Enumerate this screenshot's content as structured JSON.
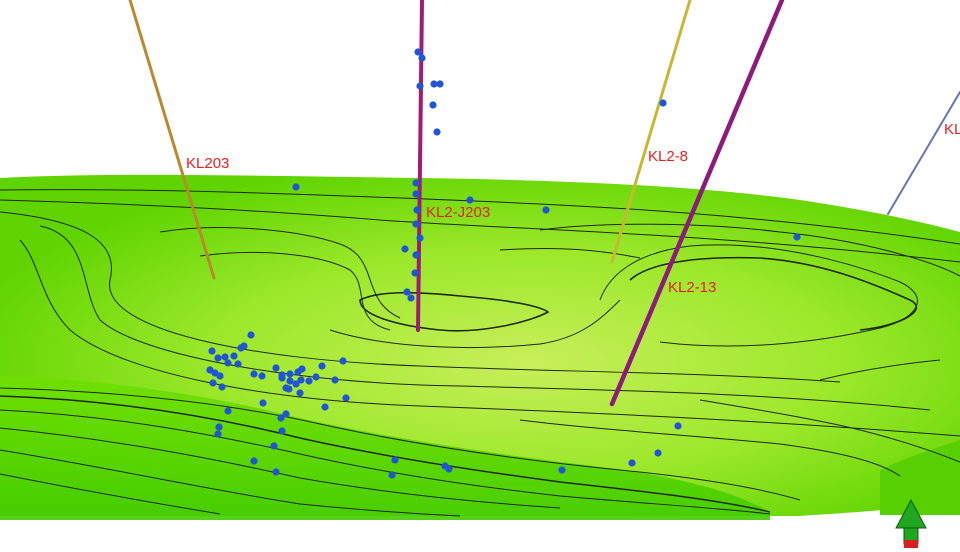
{
  "scene": {
    "surface_color": "#7ee000",
    "surface_highlight": "#c8ef5a",
    "contour_color": "#1e2a08",
    "microseismic_color": "#1f55d6",
    "label_color": "#e82020",
    "background": "#ffffff"
  },
  "wells": [
    {
      "name": "KL203",
      "color": "#b8892d"
    },
    {
      "name": "KL2-J203",
      "color": "#a01a78"
    },
    {
      "name": "KL2-8",
      "color": "#c7b832"
    },
    {
      "name": "KL2-13",
      "color": "#8e1a7c"
    },
    {
      "name": "KL",
      "color": "#6a72b8"
    }
  ],
  "axis_indicator": {
    "icon": "up-arrow-icon",
    "color": "#1fa81f",
    "base_color": "#d82020"
  }
}
